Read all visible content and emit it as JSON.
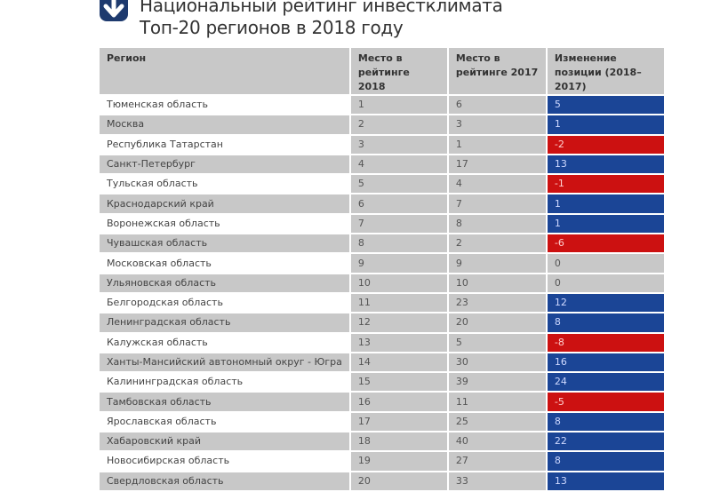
{
  "header": {
    "logo_icon": "arrow-down-logo-icon",
    "title_line1": "Национальный рейтинг инвестклимата",
    "title_line2": "Топ-20 регионов в 2018 году"
  },
  "colors": {
    "positive": "#1b4596",
    "negative": "#cc1111",
    "neutral": "#c8c8c8"
  },
  "table": {
    "columns": [
      "Регион",
      "Место в рейтинге 2018",
      "Место в рейтинге 2017",
      "Изменение позиции (2018–2017)"
    ],
    "rows": [
      {
        "region": "Тюменская область",
        "r2018": "1",
        "r2017": "6",
        "change": "5"
      },
      {
        "region": "Москва",
        "r2018": "2",
        "r2017": "3",
        "change": "1"
      },
      {
        "region": "Республика Татарстан",
        "r2018": "3",
        "r2017": "1",
        "change": "-2"
      },
      {
        "region": "Санкт-Петербург",
        "r2018": "4",
        "r2017": "17",
        "change": "13"
      },
      {
        "region": "Тульская область",
        "r2018": "5",
        "r2017": "4",
        "change": "-1"
      },
      {
        "region": "Краснодарский край",
        "r2018": "6",
        "r2017": "7",
        "change": "1"
      },
      {
        "region": "Воронежская область",
        "r2018": "7",
        "r2017": "8",
        "change": "1"
      },
      {
        "region": "Чувашская область",
        "r2018": "8",
        "r2017": "2",
        "change": "-6"
      },
      {
        "region": "Московская область",
        "r2018": "9",
        "r2017": "9",
        "change": "0"
      },
      {
        "region": "Ульяновская область",
        "r2018": "10",
        "r2017": "10",
        "change": "0"
      },
      {
        "region": "Белгородская область",
        "r2018": "11",
        "r2017": "23",
        "change": "12"
      },
      {
        "region": "Ленинградская область",
        "r2018": "12",
        "r2017": "20",
        "change": "8"
      },
      {
        "region": "Калужская область",
        "r2018": "13",
        "r2017": "5",
        "change": "-8"
      },
      {
        "region": "Ханты-Мансийский автономный округ - Югра",
        "r2018": "14",
        "r2017": "30",
        "change": "16"
      },
      {
        "region": "Калининградская область",
        "r2018": "15",
        "r2017": "39",
        "change": "24"
      },
      {
        "region": "Тамбовская область",
        "r2018": "16",
        "r2017": "11",
        "change": "-5"
      },
      {
        "region": "Ярославская область",
        "r2018": "17",
        "r2017": "25",
        "change": "8"
      },
      {
        "region": "Хабаровский край",
        "r2018": "18",
        "r2017": "40",
        "change": "22"
      },
      {
        "region": "Новосибирская область",
        "r2018": "19",
        "r2017": "27",
        "change": "8"
      },
      {
        "region": "Свердловская область",
        "r2018": "20",
        "r2017": "33",
        "change": "13"
      }
    ]
  }
}
